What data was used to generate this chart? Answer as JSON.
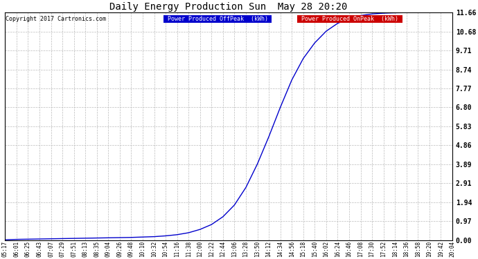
{
  "title": "Daily Energy Production Sun  May 28 20:20",
  "copyright": "Copyright 2017 Cartronics.com",
  "yticks": [
    0.0,
    0.97,
    1.94,
    2.91,
    3.89,
    4.86,
    5.83,
    6.8,
    7.77,
    8.74,
    9.71,
    10.68,
    11.66
  ],
  "ymax": 11.66,
  "ymin": 0.0,
  "legend_labels": [
    "Power Produced OffPeak  (kWh)",
    "Power Produced OnPeak  (kWh)"
  ],
  "legend_colors": [
    "#0000cc",
    "#cc0000"
  ],
  "line_color": "#0000cc",
  "background_color": "#ffffff",
  "grid_color": "#bbbbbb",
  "grid_style": "--",
  "x_labels": [
    "05:17",
    "06:01",
    "06:25",
    "06:43",
    "07:07",
    "07:29",
    "07:51",
    "08:13",
    "08:35",
    "09:04",
    "09:26",
    "09:48",
    "10:10",
    "10:32",
    "10:54",
    "11:16",
    "11:38",
    "12:00",
    "12:22",
    "12:44",
    "13:06",
    "13:28",
    "13:50",
    "14:12",
    "14:34",
    "14:56",
    "15:18",
    "15:40",
    "16:02",
    "16:24",
    "16:46",
    "17:08",
    "17:30",
    "17:52",
    "18:14",
    "18:36",
    "18:58",
    "19:20",
    "19:42",
    "20:04"
  ],
  "y_values": [
    0.02,
    0.04,
    0.05,
    0.06,
    0.07,
    0.08,
    0.09,
    0.1,
    0.11,
    0.12,
    0.13,
    0.14,
    0.16,
    0.18,
    0.22,
    0.28,
    0.38,
    0.55,
    0.8,
    1.2,
    1.8,
    2.7,
    3.9,
    5.3,
    6.8,
    8.2,
    9.3,
    10.1,
    10.7,
    11.1,
    11.35,
    11.5,
    11.58,
    11.62,
    11.64,
    11.65,
    11.66,
    11.66,
    11.66,
    11.66
  ],
  "figwidth": 6.9,
  "figheight": 3.75,
  "dpi": 100
}
